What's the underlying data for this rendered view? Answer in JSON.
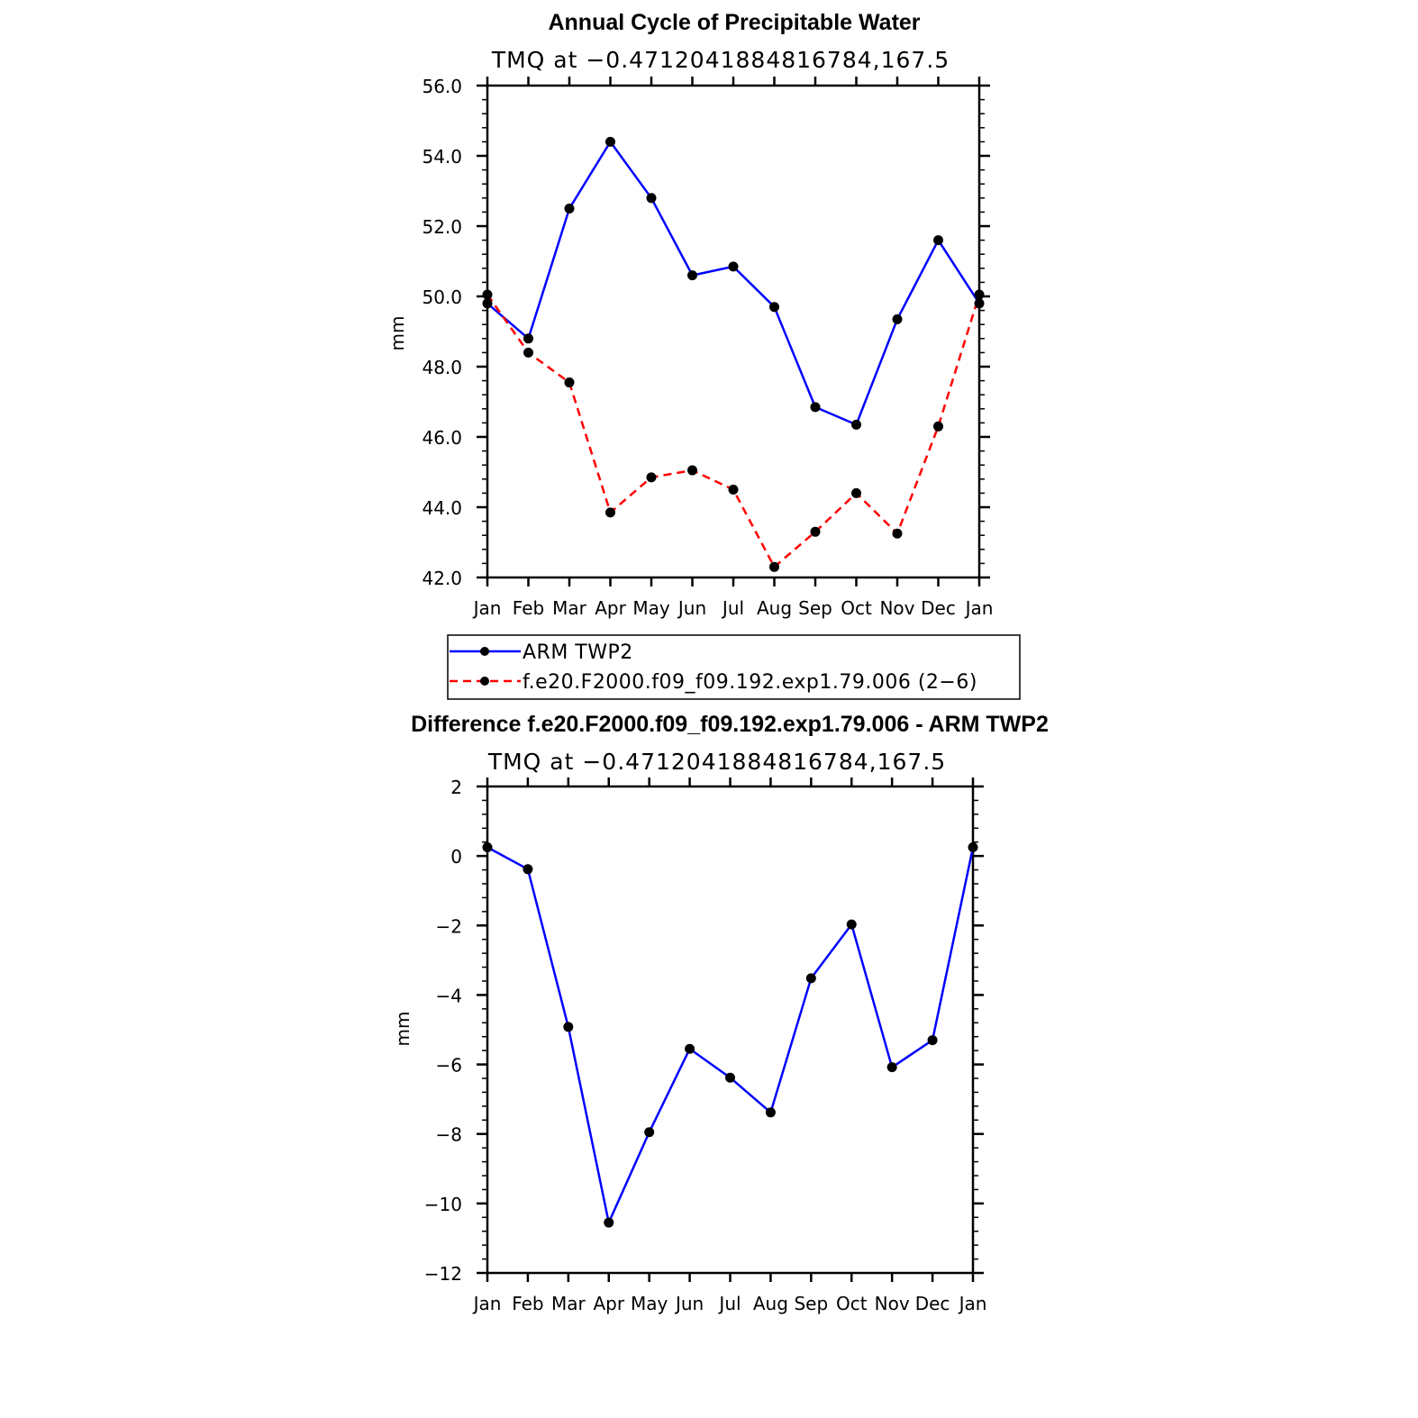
{
  "chart_data": [
    {
      "type": "line",
      "title": "Annual Cycle of Precipitable Water",
      "subtitle": "TMQ at −0.4712041884816784,167.5",
      "xlabel": "",
      "ylabel": "mm",
      "categories": [
        "Jan",
        "Feb",
        "Mar",
        "Apr",
        "May",
        "Jun",
        "Jul",
        "Aug",
        "Sep",
        "Oct",
        "Nov",
        "Dec",
        "Jan"
      ],
      "ylim": [
        42.0,
        56.0
      ],
      "yticks": [
        "42.0",
        "44.0",
        "46.0",
        "48.0",
        "50.0",
        "52.0",
        "54.0",
        "56.0"
      ],
      "series": [
        {
          "name": "ARM TWP2",
          "color": "#0000ff",
          "dash": "solid",
          "values": [
            49.8,
            48.8,
            52.5,
            54.4,
            52.8,
            50.6,
            50.85,
            49.7,
            46.85,
            46.35,
            49.35,
            51.6,
            49.8
          ]
        },
        {
          "name": "f.e20.F2000.f09_f09.192.exp1.79.006 (2−6)",
          "color": "#ff0000",
          "dash": "dashed",
          "values": [
            50.05,
            48.4,
            47.55,
            43.85,
            44.85,
            45.05,
            44.5,
            42.3,
            43.3,
            44.4,
            43.25,
            46.3,
            50.05
          ]
        }
      ],
      "legend": "bottom"
    },
    {
      "type": "line",
      "title": "Difference f.e20.F2000.f09_f09.192.exp1.79.006 - ARM TWP2",
      "subtitle": "TMQ at −0.4712041884816784,167.5",
      "xlabel": "",
      "ylabel": "mm",
      "categories": [
        "Jan",
        "Feb",
        "Mar",
        "Apr",
        "May",
        "Jun",
        "Jul",
        "Aug",
        "Sep",
        "Oct",
        "Nov",
        "Dec",
        "Jan"
      ],
      "ylim": [
        -12,
        2
      ],
      "yticks": [
        "−12",
        "−10",
        "−8",
        "−6",
        "−4",
        "−2",
        "0",
        "2"
      ],
      "series": [
        {
          "name": "Difference",
          "color": "#0000ff",
          "dash": "solid",
          "values": [
            0.25,
            -0.38,
            -4.92,
            -10.55,
            -7.95,
            -5.55,
            -6.38,
            -7.38,
            -3.52,
            -1.97,
            -6.08,
            -5.3,
            0.25
          ]
        }
      ]
    }
  ]
}
